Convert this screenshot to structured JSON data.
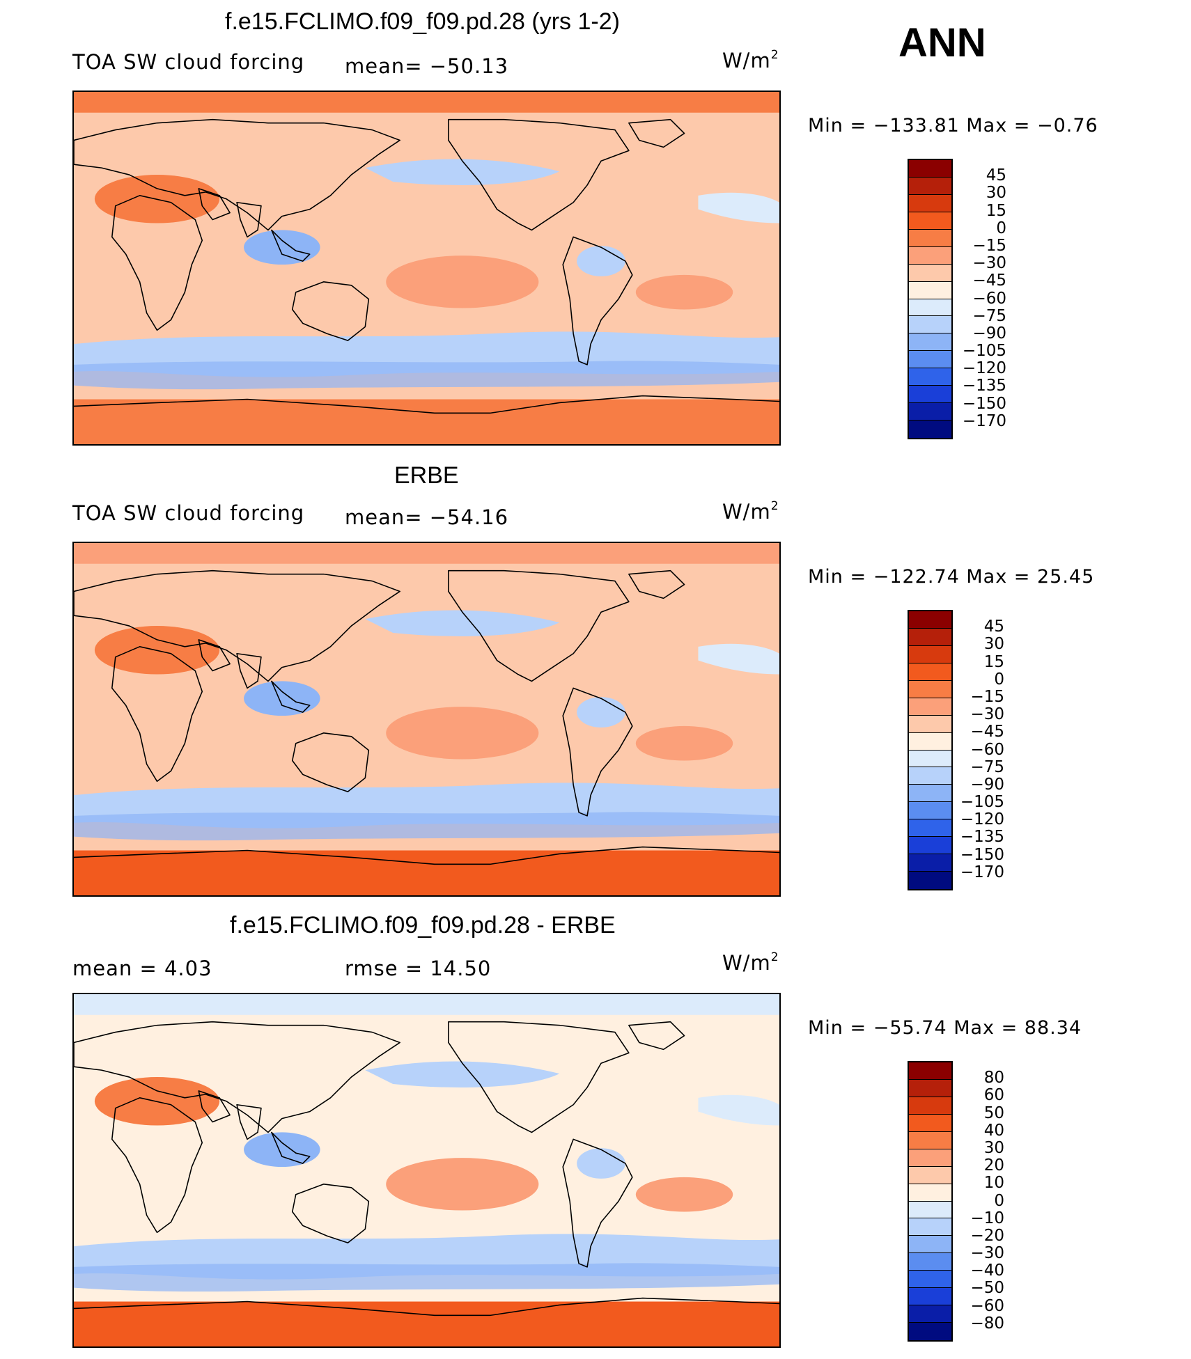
{
  "season": "ANN",
  "panels": [
    {
      "title": "f.e15.FCLIMO.f09_f09.pd.28 (yrs 1-2)",
      "variable": "TOA SW cloud forcing",
      "stat": "mean= −50.13",
      "units": "W/m",
      "units_sup": "2",
      "minmax": "Min  =  −133.81  Max  =    −0.76",
      "colorbar_labels": [
        "45",
        "30",
        "15",
        "0",
        "−15",
        "−30",
        "−45",
        "−60",
        "−75",
        "−90",
        "−105",
        "−120",
        "−135",
        "−150",
        "−170"
      ],
      "colorbar_colors": [
        "#8b0000",
        "#b5200a",
        "#d73a0e",
        "#f25a1e",
        "#f77d45",
        "#fba07a",
        "#fdc9ab",
        "#fff0e0",
        "#dcebfb",
        "#b7d2fa",
        "#8db4f6",
        "#5b8df0",
        "#2f63ea",
        "#1a3fd8",
        "#0a1ea8",
        "#000b80"
      ],
      "fields": {
        "band_sn": "#f77d45",
        "band_ss": "#f77d45",
        "base": "#fdc9ab"
      }
    },
    {
      "title": "ERBE",
      "variable": "TOA SW cloud forcing",
      "stat": "mean= −54.16",
      "units": "W/m",
      "units_sup": "2",
      "minmax": "Min  =  −122.74  Max  =    25.45",
      "colorbar_labels": [
        "45",
        "30",
        "15",
        "0",
        "−15",
        "−30",
        "−45",
        "−60",
        "−75",
        "−90",
        "−105",
        "−120",
        "−135",
        "−150",
        "−170"
      ],
      "colorbar_colors": [
        "#8b0000",
        "#b5200a",
        "#d73a0e",
        "#f25a1e",
        "#f77d45",
        "#fba07a",
        "#fdc9ab",
        "#fff0e0",
        "#dcebfb",
        "#b7d2fa",
        "#8db4f6",
        "#5b8df0",
        "#2f63ea",
        "#1a3fd8",
        "#0a1ea8",
        "#000b80"
      ],
      "fields": {
        "band_sn": "#fba07a",
        "band_ss": "#f25a1e",
        "base": "#fdc9ab"
      }
    },
    {
      "title": "f.e15.FCLIMO.f09_f09.pd.28 - ERBE",
      "stat_left": "mean  =     4.03",
      "stat": "rmse  =    14.50",
      "units": "W/m",
      "units_sup": "2",
      "minmax": "Min  =  −55.74  Max  =    88.34",
      "colorbar_labels": [
        "80",
        "60",
        "50",
        "40",
        "30",
        "20",
        "10",
        "0",
        "−10",
        "−20",
        "−30",
        "−40",
        "−50",
        "−60",
        "−80"
      ],
      "colorbar_colors": [
        "#8b0000",
        "#b5200a",
        "#d73a0e",
        "#f25a1e",
        "#f77d45",
        "#fba07a",
        "#fdc9ab",
        "#fff0e0",
        "#dcebfb",
        "#b7d2fa",
        "#8db4f6",
        "#5b8df0",
        "#2f63ea",
        "#1a3fd8",
        "#0a1ea8",
        "#000b80"
      ],
      "fields": {
        "band_sn": "#dcebfb",
        "band_ss": "#f25a1e",
        "base": "#fff0e0"
      }
    }
  ]
}
